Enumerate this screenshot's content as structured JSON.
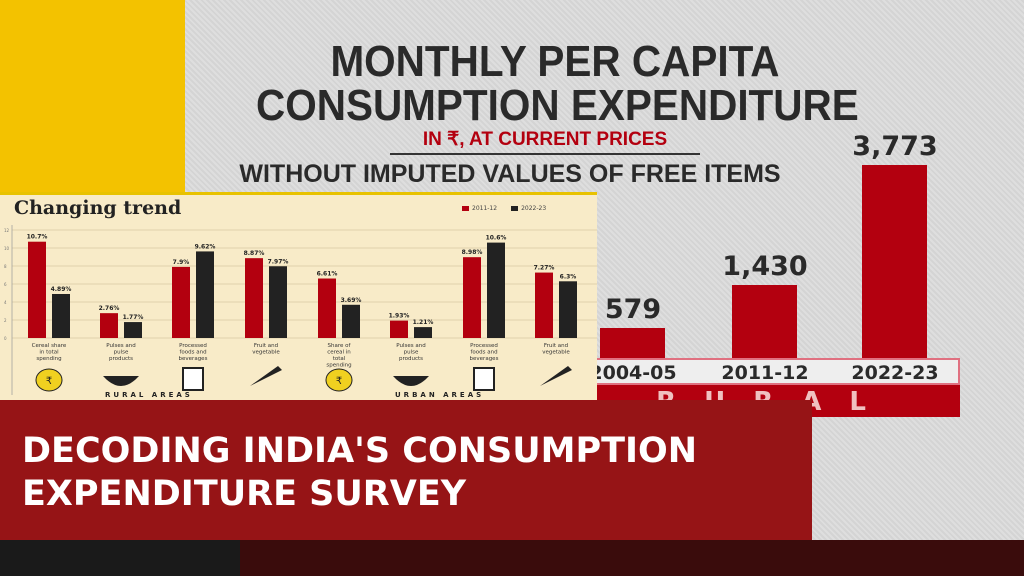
{
  "main_chart": {
    "title": "MONTHLY PER CAPITA CONSUMPTION EXPENDITURE",
    "subtitle": "IN ₹, AT CURRENT PRICES",
    "note": "WITHOUT IMPUTED VALUES OF FREE ITEMS",
    "area": "RURAL"
  },
  "inset": {
    "title": "Changing trend",
    "legend": [
      "2011-12",
      "2022-23"
    ],
    "rural_label": "RURAL AREAS",
    "urban_label": "URBAN AREAS"
  },
  "banner": {
    "line1": "DECODING INDIA'S CONSUMPTION",
    "line2": "EXPENDITURE SURVEY"
  },
  "colors": {
    "red": "#b3000f",
    "black": "#222222",
    "banner": "#961416"
  },
  "chart_data": [
    {
      "type": "bar",
      "title": "MONTHLY PER CAPITA CONSUMPTION EXPENDITURE",
      "categories": [
        "2004-05",
        "2011-12",
        "2022-23"
      ],
      "values": [
        579,
        1430,
        3773
      ],
      "labels": [
        "579",
        "1,430",
        "3,773"
      ],
      "xlabel": "RURAL",
      "ylabel": "₹"
    },
    {
      "type": "bar",
      "title": "Changing trend",
      "ylim": [
        0,
        12
      ],
      "yticks": [
        0,
        2,
        4,
        6,
        8,
        10,
        12
      ],
      "categories": [
        "Cereal share in total spending",
        "Pulses and pulse products",
        "Processed foods and beverages",
        "Fruit and vegetable",
        "Share of cereal in total spending",
        "Pulses and pulse products",
        "Processed foods and beverages",
        "Fruit and vegetable"
      ],
      "icons": [
        "money-bag-icon",
        "grain-bowl-icon",
        "packaged-food-icon",
        "carrot-icon",
        "money-bag-icon",
        "grain-bowl-icon",
        "packaged-food-icon",
        "carrot-icon"
      ],
      "series": [
        {
          "name": "2011-12",
          "values": [
            10.7,
            2.76,
            7.9,
            8.87,
            6.61,
            1.93,
            8.98,
            7.27
          ],
          "labels": [
            "10.7%",
            "2.76%",
            "7.9%",
            "8.87%",
            "6.61%",
            "1.93%",
            "8.98%",
            "7.27%"
          ]
        },
        {
          "name": "2022-23",
          "values": [
            4.89,
            1.77,
            9.62,
            7.97,
            3.69,
            1.21,
            10.6,
            6.3
          ],
          "labels": [
            "4.89%",
            "1.77%",
            "9.62%",
            "7.97%",
            "3.69%",
            "1.21%",
            "10.6%",
            "6.3%"
          ]
        }
      ]
    }
  ]
}
